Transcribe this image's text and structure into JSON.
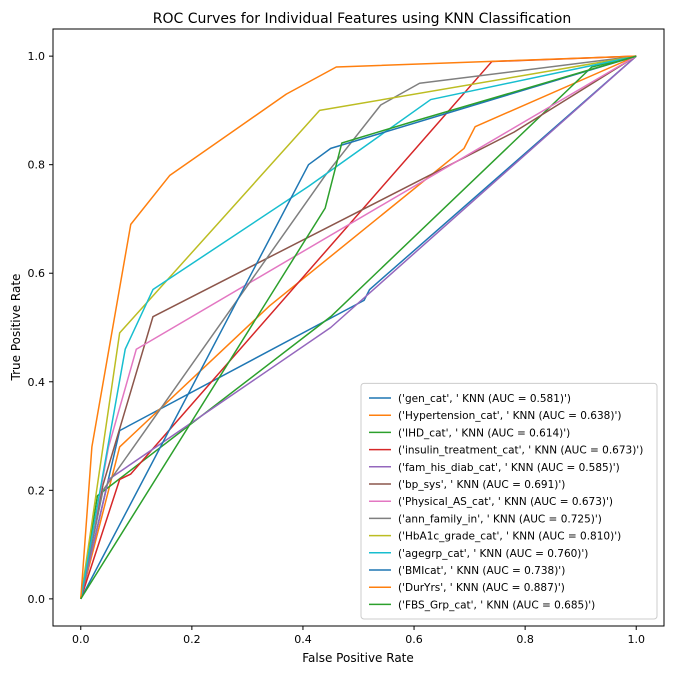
{
  "chart_data": {
    "type": "line",
    "title": "ROC Curves for Individual Features using KNN Classification",
    "xlabel": "False Positive Rate",
    "ylabel": "True Positive Rate",
    "xlim": [
      -0.05,
      1.05
    ],
    "ylim": [
      -0.05,
      1.05
    ],
    "xticks": [
      "0.0",
      "0.2",
      "0.4",
      "0.6",
      "0.8",
      "1.0"
    ],
    "yticks": [
      "0.0",
      "0.2",
      "0.4",
      "0.6",
      "0.8",
      "1.0"
    ],
    "grid": false,
    "legend_position": "lower-right",
    "series": [
      {
        "name": "('gen_cat', ' KNN (AUC = 0.581)')",
        "color": "#1f77b4",
        "x": [
          0,
          0.07,
          0.51,
          0.52,
          1.0
        ],
        "y": [
          0,
          0.31,
          0.55,
          0.57,
          1.0
        ]
      },
      {
        "name": "('Hypertension_cat', ' KNN (AUC = 0.638)')",
        "color": "#ff7f0e",
        "x": [
          0,
          0.07,
          0.34,
          0.69,
          0.71,
          1.0
        ],
        "y": [
          0,
          0.28,
          0.54,
          0.83,
          0.87,
          1.0
        ]
      },
      {
        "name": "('IHD_cat', ' KNN (AUC = 0.614)')",
        "color": "#2ca02c",
        "x": [
          0,
          0.03,
          0.45,
          0.92,
          1.0
        ],
        "y": [
          0,
          0.19,
          0.52,
          0.98,
          1.0
        ]
      },
      {
        "name": "('insulin_treatment_cat', ' KNN (AUC = 0.673)')",
        "color": "#d62728",
        "x": [
          0,
          0.07,
          0.09,
          0.74,
          1.0
        ],
        "y": [
          0,
          0.22,
          0.23,
          0.99,
          1.0
        ]
      },
      {
        "name": "('fam_his_diab_cat', ' KNN (AUC = 0.585)')",
        "color": "#9467bd",
        "x": [
          0,
          0.05,
          0.45,
          1.0
        ],
        "y": [
          0,
          0.22,
          0.5,
          1.0
        ]
      },
      {
        "name": "('bp_sys', ' KNN (AUC = 0.691)')",
        "color": "#8c564b",
        "x": [
          0,
          0.04,
          0.13,
          0.78,
          1.0
        ],
        "y": [
          0,
          0.21,
          0.52,
          0.86,
          1.0
        ]
      },
      {
        "name": "('Physical_AS_cat', ' KNN (AUC = 0.673)')",
        "color": "#e377c2",
        "x": [
          0,
          0.05,
          0.1,
          1.0
        ],
        "y": [
          0,
          0.28,
          0.46,
          1.0
        ]
      },
      {
        "name": "('ann_family_in', ' KNN (AUC = 0.725)')",
        "color": "#7f7f7f",
        "x": [
          0,
          0.04,
          0.44,
          0.54,
          0.61,
          1.0
        ],
        "y": [
          0,
          0.2,
          0.78,
          0.91,
          0.95,
          1.0
        ]
      },
      {
        "name": "('HbA1c_grade_cat', ' KNN (AUC = 0.810)')",
        "color": "#bcbd22",
        "x": [
          0,
          0.07,
          0.43,
          1.0
        ],
        "y": [
          0,
          0.49,
          0.9,
          1.0
        ]
      },
      {
        "name": "('agegrp_cat', ' KNN (AUC = 0.760)')",
        "color": "#17becf",
        "x": [
          0,
          0.08,
          0.13,
          0.41,
          0.63,
          1.0
        ],
        "y": [
          0,
          0.46,
          0.57,
          0.76,
          0.92,
          1.0
        ]
      },
      {
        "name": "('BMIcat', ' KNN (AUC = 0.738)')",
        "color": "#1f77b4",
        "x": [
          0,
          0.41,
          0.45,
          1.0
        ],
        "y": [
          0,
          0.8,
          0.83,
          1.0
        ]
      },
      {
        "name": "('DurYrs', ' KNN (AUC = 0.887)')",
        "color": "#ff7f0e",
        "x": [
          0,
          0.02,
          0.09,
          0.16,
          0.37,
          0.46,
          1.0
        ],
        "y": [
          0,
          0.28,
          0.69,
          0.78,
          0.93,
          0.98,
          1.0
        ]
      },
      {
        "name": "('FBS_Grp_cat', ' KNN (AUC = 0.685)')",
        "color": "#2ca02c",
        "x": [
          0,
          0.44,
          0.46,
          0.47,
          0.6,
          1.0
        ],
        "y": [
          0,
          0.72,
          0.8,
          0.84,
          0.88,
          1.0
        ]
      }
    ]
  }
}
